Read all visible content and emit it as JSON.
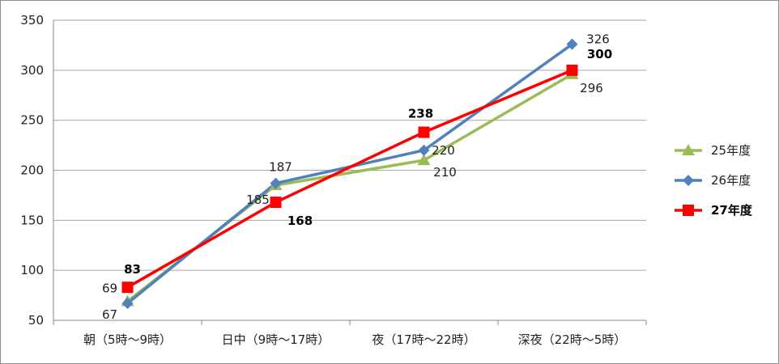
{
  "chart_data": {
    "type": "line",
    "categories": [
      "朝（5時～9時）",
      "日中（9時～17時）",
      "夜（17時～22時）",
      "深夜（22時～5時）"
    ],
    "ylim": [
      50,
      350
    ],
    "yticks": [
      50,
      100,
      150,
      200,
      250,
      300,
      350
    ],
    "grid": true,
    "legend_position": "right",
    "series": [
      {
        "name": "25年度",
        "values": [
          69,
          185,
          210,
          296
        ],
        "color": "#9bbb59",
        "marker": "triangle",
        "bold": false
      },
      {
        "name": "26年度",
        "values": [
          67,
          187,
          220,
          326
        ],
        "color": "#4f81bd",
        "marker": "diamond",
        "bold": false
      },
      {
        "name": "27年度",
        "values": [
          83,
          168,
          238,
          300
        ],
        "color": "#ff0000",
        "marker": "square",
        "bold": true
      }
    ]
  }
}
